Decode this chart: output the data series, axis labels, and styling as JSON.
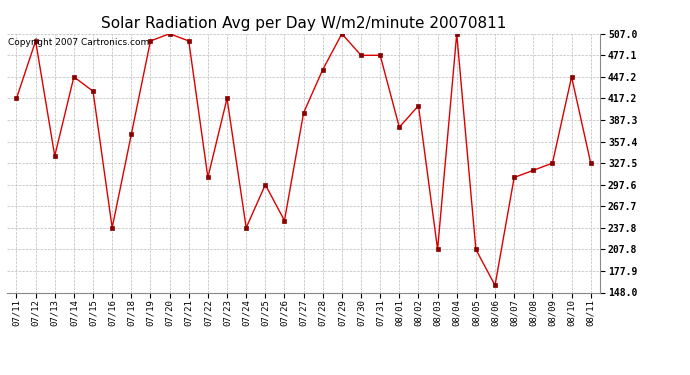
{
  "title": "Solar Radiation Avg per Day W/m2/minute 20070811",
  "copyright": "Copyright 2007 Cartronics.com",
  "dates": [
    "07/11",
    "07/12",
    "07/13",
    "07/14",
    "07/15",
    "07/16",
    "07/18",
    "07/19",
    "07/20",
    "07/21",
    "07/22",
    "07/23",
    "07/24",
    "07/25",
    "07/26",
    "07/27",
    "07/28",
    "07/29",
    "07/30",
    "07/31",
    "08/01",
    "08/02",
    "08/03",
    "08/04",
    "08/05",
    "08/06",
    "08/07",
    "08/08",
    "08/09",
    "08/10",
    "08/11"
  ],
  "values": [
    417.2,
    497.0,
    337.5,
    447.2,
    427.2,
    237.8,
    367.4,
    497.0,
    507.0,
    497.0,
    307.6,
    417.2,
    237.8,
    297.6,
    247.8,
    397.3,
    457.2,
    507.0,
    477.1,
    477.1,
    377.3,
    407.2,
    207.8,
    507.0,
    207.8,
    157.9,
    307.6,
    317.5,
    327.5,
    447.2,
    327.5
  ],
  "line_color": "#dd0000",
  "marker_color": "#880000",
  "bg_color": "#ffffff",
  "grid_color": "#bbbbbb",
  "ymin": 148.0,
  "ymax": 507.0,
  "yticks": [
    148.0,
    177.9,
    207.8,
    237.8,
    267.7,
    297.6,
    327.5,
    357.4,
    387.3,
    417.2,
    447.2,
    477.1,
    507.0
  ],
  "title_fontsize": 11,
  "copyright_fontsize": 6.5,
  "tick_fontsize": 7,
  "xlabel_fontsize": 6.5
}
